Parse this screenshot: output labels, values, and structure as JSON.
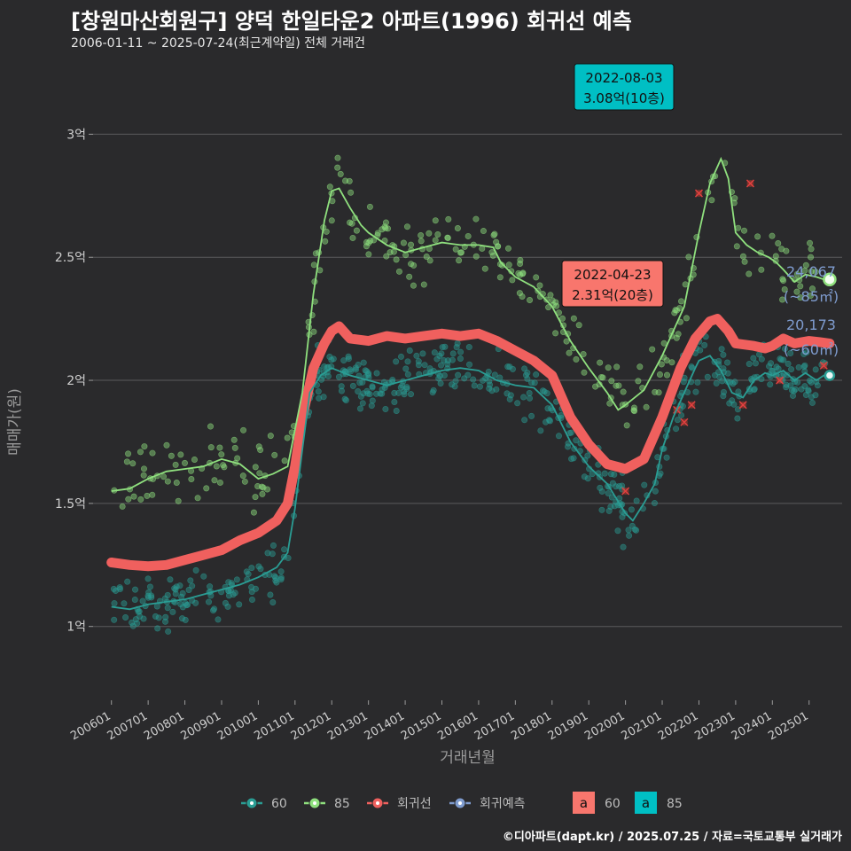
{
  "title": "[창원마산회원구] 양덕 한일타운2 아파트(1996) 회귀선 예측",
  "subtitle": "2006-01-11 ~ 2025-07-24(최근계약일) 전체 거래건",
  "caption": "©디아파트(dapt.kr) / 2025.07.25 / 자료=국토교통부 실거래가",
  "colors": {
    "s60": "#2a9d94",
    "s85": "#8fe07e",
    "regression": "#f0605e",
    "forecast": "#7f9ccf",
    "label_60": "#f8766d",
    "label_85": "#00bfc4"
  },
  "chart_data": {
    "type": "scatter",
    "xlabel": "거래년월",
    "ylabel": "매매가(원)",
    "x_tick_labels": [
      "200601",
      "200701",
      "200801",
      "200901",
      "201001",
      "201101",
      "201201",
      "201301",
      "201401",
      "201501",
      "201601",
      "201701",
      "201801",
      "201901",
      "202001",
      "202101",
      "202201",
      "202301",
      "202401",
      "202501"
    ],
    "y_ticks": [
      1,
      1.5,
      2,
      2.5,
      3
    ],
    "y_tick_labels": [
      "1억",
      "1.5억",
      "2억",
      "2.5억",
      "3억"
    ],
    "ylim": [
      0.7,
      3.25
    ],
    "xlim": [
      2005.5,
      2025.9
    ],
    "series": [
      {
        "name": "60",
        "line": [
          [
            2006.0,
            1.08
          ],
          [
            2006.5,
            1.07
          ],
          [
            2007.0,
            1.09
          ],
          [
            2007.5,
            1.1
          ],
          [
            2008.0,
            1.11
          ],
          [
            2008.5,
            1.13
          ],
          [
            2009.0,
            1.15
          ],
          [
            2009.5,
            1.17
          ],
          [
            2010.0,
            1.2
          ],
          [
            2010.5,
            1.24
          ],
          [
            2010.8,
            1.3
          ],
          [
            2011.0,
            1.48
          ],
          [
            2011.2,
            1.72
          ],
          [
            2011.4,
            1.95
          ],
          [
            2011.7,
            2.02
          ],
          [
            2012.0,
            2.05
          ],
          [
            2012.5,
            2.02
          ],
          [
            2013.0,
            2.0
          ],
          [
            2013.5,
            1.98
          ],
          [
            2014.0,
            2.0
          ],
          [
            2014.5,
            2.02
          ],
          [
            2015.0,
            2.04
          ],
          [
            2015.5,
            2.05
          ],
          [
            2016.0,
            2.04
          ],
          [
            2016.5,
            2.0
          ],
          [
            2017.0,
            1.98
          ],
          [
            2017.5,
            1.97
          ],
          [
            2018.0,
            1.9
          ],
          [
            2018.5,
            1.75
          ],
          [
            2019.0,
            1.65
          ],
          [
            2019.5,
            1.58
          ],
          [
            2020.0,
            1.46
          ],
          [
            2020.2,
            1.43
          ],
          [
            2020.5,
            1.5
          ],
          [
            2020.8,
            1.58
          ],
          [
            2021.0,
            1.72
          ],
          [
            2021.3,
            1.85
          ],
          [
            2021.6,
            1.95
          ],
          [
            2021.9,
            2.05
          ],
          [
            2022.0,
            2.08
          ],
          [
            2022.3,
            2.1
          ],
          [
            2022.6,
            2.04
          ],
          [
            2022.9,
            1.95
          ],
          [
            2023.2,
            1.93
          ],
          [
            2023.5,
            2.0
          ],
          [
            2023.8,
            2.03
          ],
          [
            2024.0,
            2.02
          ],
          [
            2024.3,
            2.04
          ],
          [
            2024.6,
            2.0
          ],
          [
            2024.9,
            2.03
          ],
          [
            2025.2,
            2.0
          ],
          [
            2025.4,
            2.02
          ],
          [
            2025.56,
            2.02
          ]
        ]
      },
      {
        "name": "85",
        "line": [
          [
            2006.0,
            1.55
          ],
          [
            2006.5,
            1.56
          ],
          [
            2007.0,
            1.6
          ],
          [
            2007.5,
            1.63
          ],
          [
            2008.0,
            1.64
          ],
          [
            2008.5,
            1.65
          ],
          [
            2009.0,
            1.68
          ],
          [
            2009.5,
            1.66
          ],
          [
            2010.0,
            1.6
          ],
          [
            2010.4,
            1.62
          ],
          [
            2010.8,
            1.65
          ],
          [
            2011.0,
            1.8
          ],
          [
            2011.2,
            1.95
          ],
          [
            2011.5,
            2.35
          ],
          [
            2011.8,
            2.65
          ],
          [
            2012.0,
            2.77
          ],
          [
            2012.2,
            2.78
          ],
          [
            2012.5,
            2.7
          ],
          [
            2012.8,
            2.63
          ],
          [
            2013.0,
            2.6
          ],
          [
            2013.5,
            2.55
          ],
          [
            2014.0,
            2.52
          ],
          [
            2014.5,
            2.54
          ],
          [
            2015.0,
            2.56
          ],
          [
            2015.5,
            2.55
          ],
          [
            2016.0,
            2.55
          ],
          [
            2016.4,
            2.54
          ],
          [
            2016.6,
            2.48
          ],
          [
            2017.0,
            2.42
          ],
          [
            2017.5,
            2.38
          ],
          [
            2018.0,
            2.3
          ],
          [
            2018.5,
            2.16
          ],
          [
            2019.0,
            2.05
          ],
          [
            2019.5,
            1.95
          ],
          [
            2019.8,
            1.88
          ],
          [
            2020.0,
            1.9
          ],
          [
            2020.5,
            1.96
          ],
          [
            2021.0,
            2.1
          ],
          [
            2021.3,
            2.2
          ],
          [
            2021.6,
            2.3
          ],
          [
            2021.8,
            2.45
          ],
          [
            2022.0,
            2.6
          ],
          [
            2022.3,
            2.8
          ],
          [
            2022.6,
            2.9
          ],
          [
            2022.8,
            2.82
          ],
          [
            2023.0,
            2.6
          ],
          [
            2023.3,
            2.55
          ],
          [
            2023.6,
            2.52
          ],
          [
            2023.9,
            2.5
          ],
          [
            2024.1,
            2.48
          ],
          [
            2024.3,
            2.45
          ],
          [
            2024.6,
            2.4
          ],
          [
            2024.9,
            2.43
          ],
          [
            2025.2,
            2.42
          ],
          [
            2025.4,
            2.41
          ],
          [
            2025.56,
            2.41
          ]
        ]
      },
      {
        "name": "회귀선",
        "line": [
          [
            2006.0,
            1.26
          ],
          [
            2006.5,
            1.25
          ],
          [
            2007.0,
            1.245
          ],
          [
            2007.5,
            1.25
          ],
          [
            2008.0,
            1.27
          ],
          [
            2008.5,
            1.29
          ],
          [
            2009.0,
            1.31
          ],
          [
            2009.5,
            1.35
          ],
          [
            2010.0,
            1.38
          ],
          [
            2010.5,
            1.43
          ],
          [
            2010.8,
            1.5
          ],
          [
            2011.0,
            1.65
          ],
          [
            2011.2,
            1.85
          ],
          [
            2011.5,
            2.05
          ],
          [
            2011.8,
            2.15
          ],
          [
            2012.0,
            2.2
          ],
          [
            2012.2,
            2.22
          ],
          [
            2012.5,
            2.17
          ],
          [
            2013.0,
            2.16
          ],
          [
            2013.5,
            2.18
          ],
          [
            2014.0,
            2.17
          ],
          [
            2014.5,
            2.18
          ],
          [
            2015.0,
            2.19
          ],
          [
            2015.5,
            2.18
          ],
          [
            2016.0,
            2.19
          ],
          [
            2016.5,
            2.16
          ],
          [
            2017.0,
            2.12
          ],
          [
            2017.5,
            2.08
          ],
          [
            2018.0,
            2.02
          ],
          [
            2018.5,
            1.85
          ],
          [
            2019.0,
            1.74
          ],
          [
            2019.5,
            1.66
          ],
          [
            2020.0,
            1.64
          ],
          [
            2020.5,
            1.68
          ],
          [
            2021.0,
            1.85
          ],
          [
            2021.5,
            2.05
          ],
          [
            2021.9,
            2.17
          ],
          [
            2022.3,
            2.24
          ],
          [
            2022.5,
            2.25
          ],
          [
            2022.8,
            2.2
          ],
          [
            2023.0,
            2.15
          ],
          [
            2023.5,
            2.14
          ],
          [
            2023.8,
            2.13
          ],
          [
            2024.0,
            2.14
          ],
          [
            2024.3,
            2.17
          ],
          [
            2024.6,
            2.15
          ],
          [
            2025.0,
            2.16
          ],
          [
            2025.3,
            2.155
          ],
          [
            2025.56,
            2.15
          ]
        ]
      },
      {
        "name": "회귀예측",
        "points": [
          [
            2025.56,
            2.41
          ],
          [
            2025.56,
            2.02
          ]
        ]
      }
    ],
    "peak_labels": [
      {
        "series": "85",
        "date": "2022-08-03",
        "value": "3.08억(10층)",
        "x": 2022.6,
        "y": 3.08
      },
      {
        "series": "60",
        "date": "2022-04-23",
        "value": "2.31억(20층)",
        "x": 2022.3,
        "y": 2.31
      }
    ],
    "end_labels": [
      {
        "series": "85",
        "price": "24,067",
        "area": "(~85㎡)",
        "y": 2.41
      },
      {
        "series": "60",
        "price": "20,173",
        "area": "(~60㎡)",
        "y": 2.02
      }
    ],
    "outliers_60": [
      [
        2020.0,
        1.55
      ],
      [
        2021.4,
        1.88
      ],
      [
        2021.6,
        1.83
      ],
      [
        2021.8,
        1.9
      ],
      [
        2022.0,
        2.76
      ],
      [
        2023.2,
        1.9
      ],
      [
        2023.4,
        2.8
      ],
      [
        2024.2,
        2.0
      ],
      [
        2025.4,
        2.06
      ]
    ],
    "legend": {
      "items": [
        "60",
        "85",
        "회귀선",
        "회귀예측"
      ],
      "label_keys": [
        {
          "glyph": "a",
          "name": "60"
        },
        {
          "glyph": "a",
          "name": "85"
        }
      ]
    }
  }
}
